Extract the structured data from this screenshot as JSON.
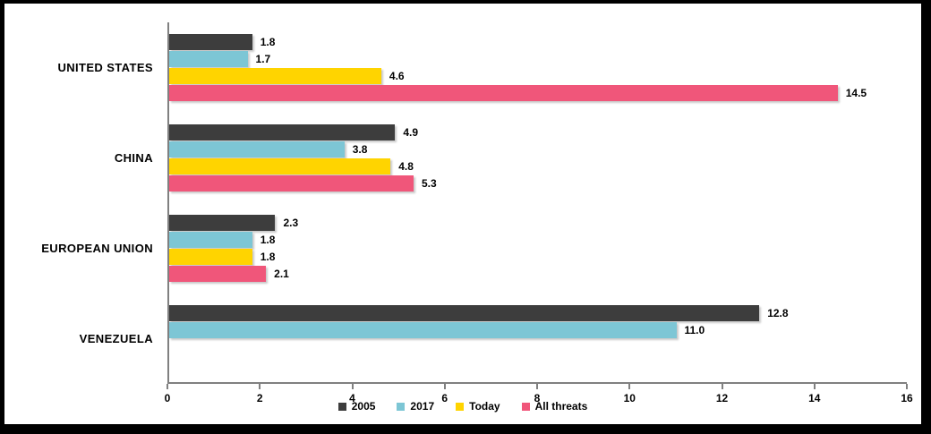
{
  "chart_data": {
    "type": "bar",
    "orientation": "horizontal",
    "title": "",
    "xlabel": "",
    "ylabel": "",
    "grid": false,
    "legend_position": "bottom-center",
    "xlim": [
      0,
      16
    ],
    "xticks": [
      0,
      2,
      4,
      6,
      8,
      10,
      12,
      14,
      16
    ],
    "categories": [
      "UNITED STATES",
      "CHINA",
      "EUROPEAN UNION",
      "VENEZUELA"
    ],
    "series": [
      {
        "name": "2005",
        "color": "#3d3d3d",
        "values": [
          1.8,
          4.9,
          2.3,
          12.8
        ]
      },
      {
        "name": "2017",
        "color": "#7dc6d5",
        "values": [
          1.7,
          3.8,
          1.8,
          11.0
        ]
      },
      {
        "name": "Today",
        "color": "#ffd400",
        "values": [
          4.6,
          4.8,
          1.8,
          null
        ]
      },
      {
        "name": "All threats",
        "color": "#f0567a",
        "values": [
          14.5,
          5.3,
          2.1,
          null
        ]
      }
    ],
    "data_labels": {
      "UNITED STATES": [
        "1.8",
        "1.7",
        "4.6",
        "14.5"
      ],
      "CHINA": [
        "4.9",
        "3.8",
        "4.8",
        "5.3"
      ],
      "EUROPEAN UNION": [
        "2.3",
        "1.8",
        "1.8",
        "2.1"
      ],
      "VENEZUELA": [
        "12.8",
        "11.0",
        null,
        null
      ]
    },
    "colors": {
      "axis_line": "#808080",
      "label_text": "#000000",
      "background": "#ffffff",
      "frame_border": "#000000"
    }
  }
}
